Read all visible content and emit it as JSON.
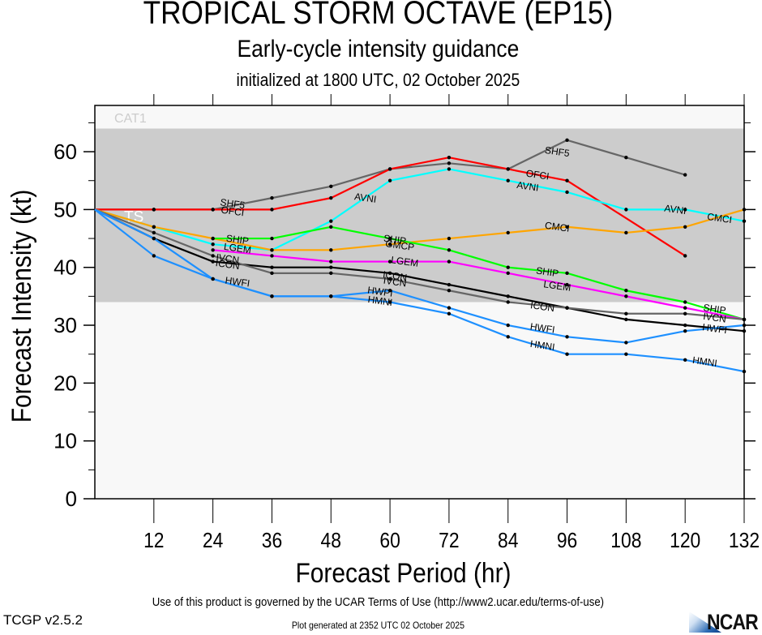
{
  "header": {
    "title": "TROPICAL STORM OCTAVE (EP15)",
    "subtitle": "Early-cycle intensity guidance",
    "initialized": "initialized at 1800 UTC, 02 October 2025"
  },
  "footer": {
    "terms": "Use of this product is governed by the UCAR Terms of Use (http://www2.ucar.edu/terms-of-use)",
    "generated": "Plot generated at 2352 UTC   02 October 2025",
    "version": "TCGP v2.5.2",
    "logo_text": "NCAR"
  },
  "chart_data": {
    "type": "line",
    "title": "TROPICAL STORM OCTAVE (EP15)",
    "xlabel": "Forecast Period (hr)",
    "ylabel": "Forecast Intensity (kt)",
    "xlim": [
      0,
      132
    ],
    "ylim": [
      0,
      68
    ],
    "xticks": [
      12,
      24,
      36,
      48,
      60,
      72,
      84,
      96,
      108,
      120,
      132
    ],
    "yticks": [
      0,
      10,
      20,
      30,
      40,
      50,
      60
    ],
    "grid": false,
    "bands": [
      {
        "label": "CAT1",
        "from": 64,
        "to": 68,
        "color": "#f8f8f8",
        "label_color": "#cccccc"
      },
      {
        "label": "TS",
        "from": 34,
        "to": 64,
        "color": "#cccccc",
        "label_color": "#ffffff"
      },
      {
        "label": "",
        "from": 0,
        "to": 34,
        "color": "#f8f8f8",
        "label_color": "#cccccc"
      }
    ],
    "series": [
      {
        "name": "SHF5",
        "color": "#666666",
        "x": [
          0,
          12,
          24,
          36,
          48,
          60,
          72,
          84,
          96,
          108,
          120
        ],
        "values": [
          50,
          50,
          50,
          52,
          54,
          57,
          58,
          57,
          62,
          59,
          56
        ]
      },
      {
        "name": "OFCI",
        "color": "#ff0000",
        "x": [
          0,
          12,
          24,
          36,
          48,
          60,
          72,
          84,
          96,
          120
        ],
        "values": [
          50,
          50,
          50,
          50,
          52,
          57,
          59,
          57,
          55,
          42
        ]
      },
      {
        "name": "AVNI",
        "color": "#00ffff",
        "x": [
          0,
          12,
          24,
          36,
          48,
          60,
          72,
          84,
          96,
          108,
          120,
          132
        ],
        "values": [
          50,
          47,
          44,
          43,
          48,
          55,
          57,
          55,
          53,
          50,
          50,
          48
        ]
      },
      {
        "name": "CMCI",
        "color": "#ffa500",
        "x": [
          0,
          12,
          24,
          36,
          48,
          60,
          72,
          84,
          96,
          108,
          120,
          132
        ],
        "values": [
          50,
          47,
          45,
          43,
          43,
          44,
          45,
          46,
          47,
          46,
          47,
          50
        ]
      },
      {
        "name": "SHIP",
        "color": "#00ff00",
        "x": [
          24,
          36,
          48,
          60,
          72,
          84,
          96,
          108,
          120,
          132
        ],
        "values": [
          45,
          45,
          47,
          45,
          43,
          40,
          39,
          36,
          34,
          31
        ]
      },
      {
        "name": "LGEM",
        "color": "#ff00ff",
        "x": [
          24,
          36,
          48,
          60,
          72,
          84,
          96,
          108,
          120,
          132
        ],
        "values": [
          43,
          42,
          41,
          41,
          41,
          39,
          37,
          35,
          33,
          31
        ]
      },
      {
        "name": "ICON",
        "color": "#000000",
        "x": [
          0,
          12,
          24,
          36,
          48,
          60,
          72,
          84,
          96,
          108,
          120,
          132
        ],
        "values": [
          50,
          45,
          41,
          40,
          40,
          39,
          37,
          35,
          33,
          31,
          30,
          29
        ]
      },
      {
        "name": "IVCN",
        "color": "#666666",
        "x": [
          0,
          12,
          24,
          36,
          48,
          60,
          72,
          84,
          96,
          108,
          120,
          132
        ],
        "values": [
          50,
          46,
          42,
          39,
          39,
          38,
          36,
          34,
          33,
          32,
          32,
          31
        ]
      },
      {
        "name": "HWFI",
        "color": "#1e90ff",
        "x": [
          0,
          12,
          24,
          36,
          48,
          60,
          72,
          84,
          96,
          108,
          120,
          132
        ],
        "values": [
          50,
          45,
          38,
          35,
          35,
          36,
          33,
          30,
          28,
          27,
          29,
          30
        ]
      },
      {
        "name": "HMNI",
        "color": "#1e90ff",
        "x": [
          0,
          12,
          24,
          36,
          48,
          60,
          72,
          84,
          96,
          108,
          120,
          132
        ],
        "values": [
          50,
          42,
          38,
          35,
          35,
          34,
          32,
          28,
          25,
          25,
          24,
          22
        ]
      }
    ],
    "annotations": [
      {
        "text": "SHF5",
        "x": 28,
        "y": 51,
        "color": "#000000"
      },
      {
        "text": "OFCI",
        "x": 28,
        "y": 49.7,
        "color": "#000000"
      },
      {
        "text": "AVNI",
        "x": 55,
        "y": 52,
        "color": "#000000"
      },
      {
        "text": "SHF5",
        "x": 94,
        "y": 60,
        "color": "#000000"
      },
      {
        "text": "OFCI",
        "x": 90,
        "y": 56,
        "color": "#000000"
      },
      {
        "text": "AVNI",
        "x": 88,
        "y": 54,
        "color": "#000000"
      },
      {
        "text": "CMCI",
        "x": 94,
        "y": 47,
        "color": "#000000"
      },
      {
        "text": "AVNI",
        "x": 118,
        "y": 50,
        "color": "#000000"
      },
      {
        "text": "CMCI",
        "x": 127,
        "y": 48.5,
        "color": "#000000"
      },
      {
        "text": "SHIP",
        "x": 29,
        "y": 44.8,
        "color": "#000000"
      },
      {
        "text": "LGEM",
        "x": 29,
        "y": 43.3,
        "color": "#000000"
      },
      {
        "text": "IVCN",
        "x": 27,
        "y": 41.5,
        "color": "#000000"
      },
      {
        "text": "ICON",
        "x": 27,
        "y": 40.5,
        "color": "#000000"
      },
      {
        "text": "HWFI",
        "x": 29,
        "y": 37.5,
        "color": "#000000"
      },
      {
        "text": "SHIP",
        "x": 61,
        "y": 44.8,
        "color": "#000000"
      },
      {
        "text": "GMCP",
        "x": 62,
        "y": 43.8,
        "color": "#000000"
      },
      {
        "text": "LGEM",
        "x": 63,
        "y": 41,
        "color": "#000000"
      },
      {
        "text": "ICON",
        "x": 61,
        "y": 38.5,
        "color": "#000000"
      },
      {
        "text": "IVCN",
        "x": 61,
        "y": 37.5,
        "color": "#000000"
      },
      {
        "text": "HWPI",
        "x": 58,
        "y": 35.8,
        "color": "#000000"
      },
      {
        "text": "HMNI",
        "x": 58,
        "y": 34.2,
        "color": "#000000"
      },
      {
        "text": "SHIP",
        "x": 92,
        "y": 39.2,
        "color": "#000000"
      },
      {
        "text": "LGEM",
        "x": 94,
        "y": 36.8,
        "color": "#000000"
      },
      {
        "text": "ICON",
        "x": 91,
        "y": 33.2,
        "color": "#000000"
      },
      {
        "text": "HWFI",
        "x": 91,
        "y": 29.5,
        "color": "#000000"
      },
      {
        "text": "HMNI",
        "x": 91,
        "y": 26.5,
        "color": "#000000"
      },
      {
        "text": "SHIP",
        "x": 126,
        "y": 32.8,
        "color": "#000000"
      },
      {
        "text": "IVCN",
        "x": 126,
        "y": 31.3,
        "color": "#000000"
      },
      {
        "text": "HWFI",
        "x": 126,
        "y": 29.4,
        "color": "#000000"
      },
      {
        "text": "HMNI",
        "x": 124,
        "y": 23.7,
        "color": "#000000"
      }
    ]
  }
}
